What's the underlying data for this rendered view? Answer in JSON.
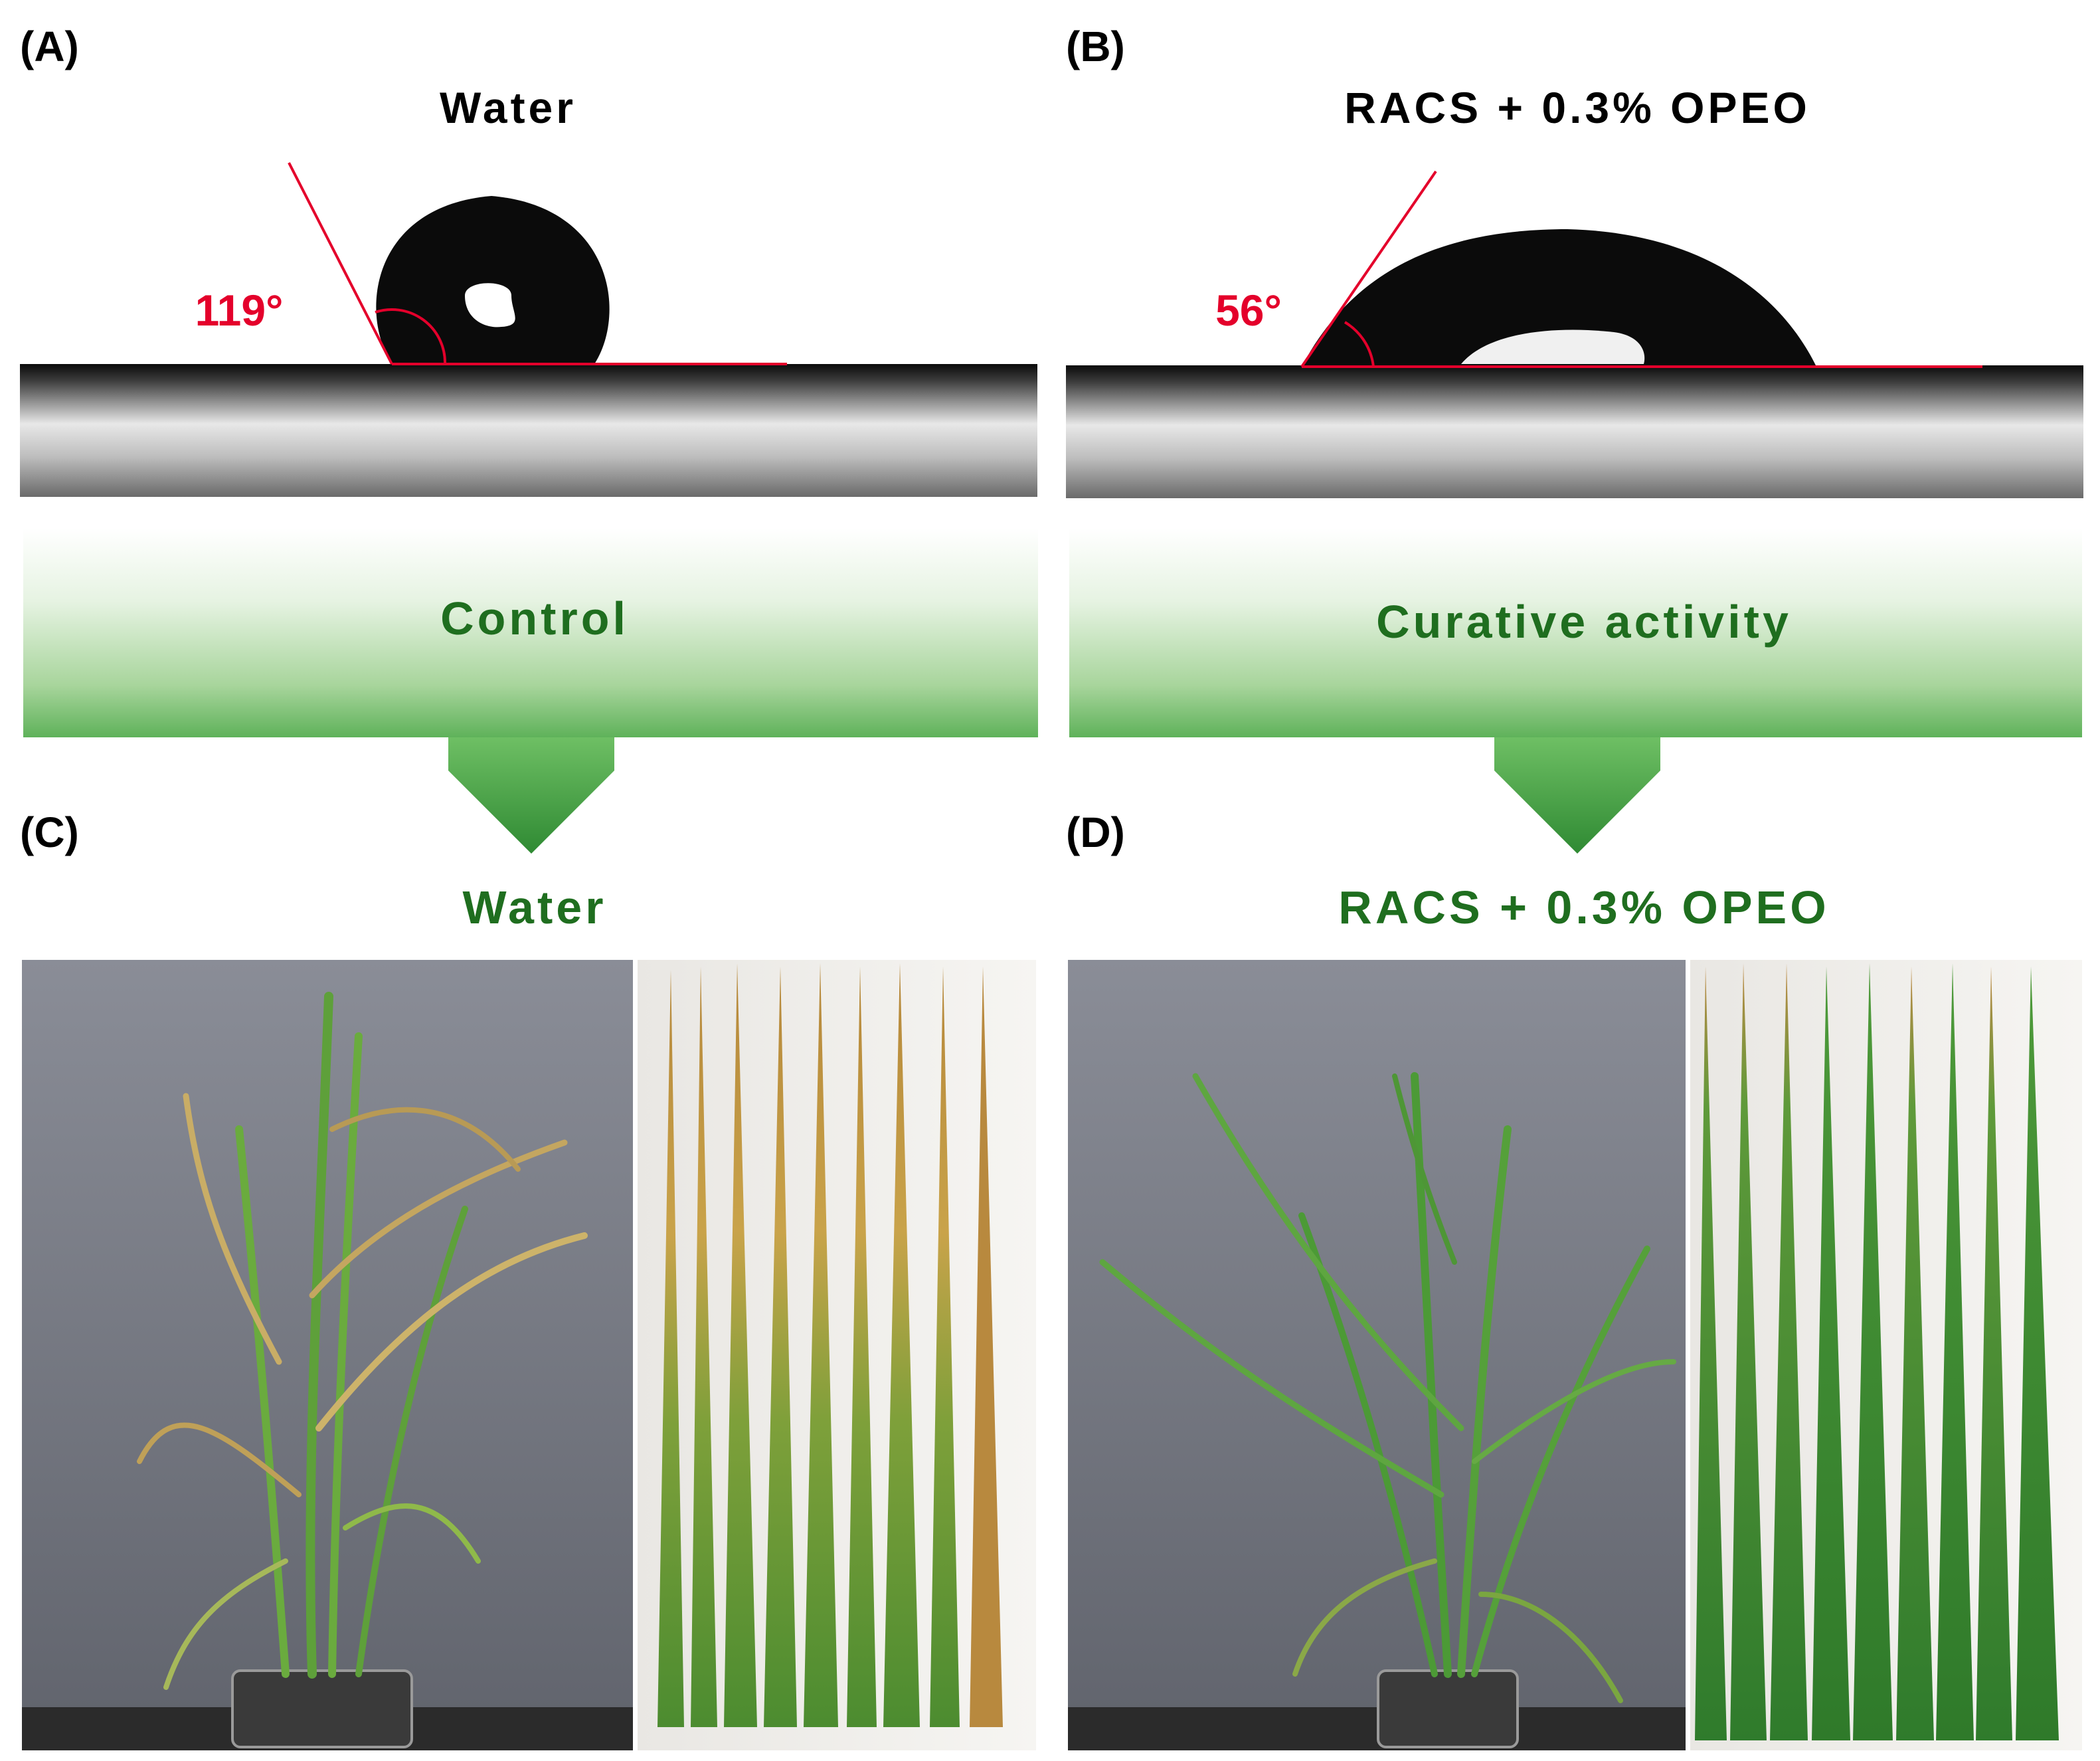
{
  "figure": {
    "panels": [
      {
        "letter": "(A)",
        "title": "Water",
        "contact_angle": "119°"
      },
      {
        "letter": "(B)",
        "title": "RACS + 0.3% OPEO",
        "contact_angle": "56°"
      },
      {
        "letter": "(C)",
        "title": "Water"
      },
      {
        "letter": "(D)",
        "title": "RACS + 0.3% OPEO"
      }
    ],
    "arrows": [
      {
        "label": "Control"
      },
      {
        "label": "Curative activity"
      }
    ],
    "colors": {
      "angle_red": "#e4002b",
      "arrow_text_green": "#1f6e1f",
      "arrow_fill_green": "#4ea84e",
      "healthy_leaf": "#3f8a30",
      "diseased_leaf": "#c79a3c"
    }
  }
}
